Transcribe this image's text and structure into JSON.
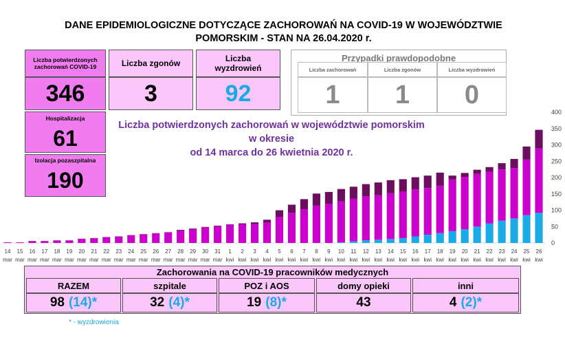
{
  "header": {
    "title_line1": "DANE EPIDEMIOLOGICZNE DOTYCZĄCE ZACHOROWAŃ NA COVID-19 W WOJEWÓDZTWIE",
    "title_line2": "POMORSKIM - STAN NA 26.04.2020 r."
  },
  "summary": {
    "confirmed": {
      "label": "Liczba potwierdzonych zachorowań COVID-19",
      "value": "346"
    },
    "deaths": {
      "label": "Liczba zgonów",
      "value": "3"
    },
    "recovered": {
      "label": "Liczba wyzdrowień",
      "value": "92"
    },
    "hospitalized": {
      "label": "Hospitalizacja",
      "value": "61"
    },
    "isolation": {
      "label": "Izolacja pozaszpitalna",
      "value": "190"
    }
  },
  "probable": {
    "title": "Przypadki prawdopodobne",
    "cells": [
      {
        "label": "Liczba zachorowań",
        "value": "1"
      },
      {
        "label": "Liczba zgonów",
        "value": "1"
      },
      {
        "label": "Liczba wyzdrowień",
        "value": "0"
      }
    ]
  },
  "chart_title": {
    "line1": "Liczba potwierdzonych zachorowań w województwie pomorskim w okresie",
    "line2": "od 14 marca do 26 kwietnia 2020 r."
  },
  "colors": {
    "magenta": "#cc00cc",
    "blue": "#1aaae6",
    "dark": "#6b0e5e",
    "pink_bg": "#fbc6fa",
    "magenta_bg": "#f17cf0"
  },
  "chart_data": {
    "type": "bar",
    "stacked": true,
    "title": "Liczba potwierdzonych zachorowań w województwie pomorskim w okresie od 14 marca do 26 kwietnia 2020 r.",
    "x_day": [
      "14",
      "15",
      "16",
      "17",
      "18",
      "19",
      "20",
      "21",
      "22",
      "23",
      "24",
      "25",
      "26",
      "27",
      "28",
      "29",
      "30",
      "31",
      "1",
      "2",
      "3",
      "4",
      "5",
      "6",
      "7",
      "8",
      "9",
      "10",
      "11",
      "12",
      "13",
      "14",
      "15",
      "16",
      "17",
      "18",
      "19",
      "20",
      "21",
      "22",
      "23",
      "24",
      "25",
      "26"
    ],
    "x_month": [
      "mar",
      "mar",
      "mar",
      "mar",
      "mar",
      "mar",
      "mar",
      "mar",
      "mar",
      "mar",
      "mar",
      "mar",
      "mar",
      "mar",
      "mar",
      "mar",
      "mar",
      "mar",
      "kwi",
      "kwi",
      "kwi",
      "kwi",
      "kwi",
      "kwi",
      "kwi",
      "kwi",
      "kwi",
      "kwi",
      "kwi",
      "kwi",
      "kwi",
      "kwi",
      "kwi",
      "kwi",
      "kwi",
      "kwi",
      "kwi",
      "kwi",
      "kwi",
      "kwi",
      "kwi",
      "kwi",
      "kwi",
      "kwi"
    ],
    "ylim": [
      0,
      400
    ],
    "yticks": [
      0,
      50,
      100,
      150,
      200,
      250,
      300,
      350,
      400
    ],
    "series": [
      {
        "color": "#1aaae6",
        "values": [
          0,
          0,
          0,
          0,
          0,
          0,
          0,
          0,
          0,
          0,
          0,
          0,
          0,
          0,
          0,
          0,
          0,
          0,
          0,
          0,
          0,
          0,
          0,
          0,
          0,
          0,
          0,
          2,
          5,
          8,
          10,
          12,
          15,
          20,
          25,
          30,
          36,
          42,
          50,
          60,
          68,
          75,
          85,
          92
        ]
      },
      {
        "color": "#cc00cc",
        "values": [
          2,
          2,
          5,
          5,
          7,
          7,
          12,
          14,
          17,
          19,
          23,
          26,
          29,
          32,
          38,
          42,
          47,
          51,
          55,
          57,
          58,
          63,
          80,
          92,
          103,
          114,
          120,
          125,
          130,
          135,
          136,
          140,
          142,
          144,
          143,
          145,
          158,
          160,
          161,
          158,
          157,
          154,
          170,
          197
        ]
      },
      {
        "color": "#6b0e5e",
        "values": [
          0,
          0,
          1,
          1,
          1,
          1,
          1,
          1,
          1,
          1,
          1,
          1,
          1,
          1,
          2,
          2,
          2,
          2,
          2,
          3,
          5,
          8,
          20,
          25,
          31,
          37,
          36,
          38,
          37,
          37,
          39,
          40,
          38,
          37,
          38,
          40,
          12,
          12,
          13,
          14,
          19,
          28,
          40,
          57
        ]
      }
    ]
  },
  "medical": {
    "title": "Zachorowania na COVID-19 pracowników medycznych",
    "columns": [
      {
        "label": "RAZEM",
        "value": "98",
        "recovered": "(14)",
        "star": "*"
      },
      {
        "label": "szpitale",
        "value": "32",
        "recovered": "(4)",
        "star": "*"
      },
      {
        "label": "POZ i AOS",
        "value": "19",
        "recovered": "(8)",
        "star": "*"
      },
      {
        "label": "domy opieki",
        "value": "43",
        "recovered": "",
        "star": ""
      },
      {
        "label": "inni",
        "value": "4",
        "recovered": "(2)",
        "star": "*"
      }
    ],
    "footnote": "*  - wyzdrowienia"
  }
}
